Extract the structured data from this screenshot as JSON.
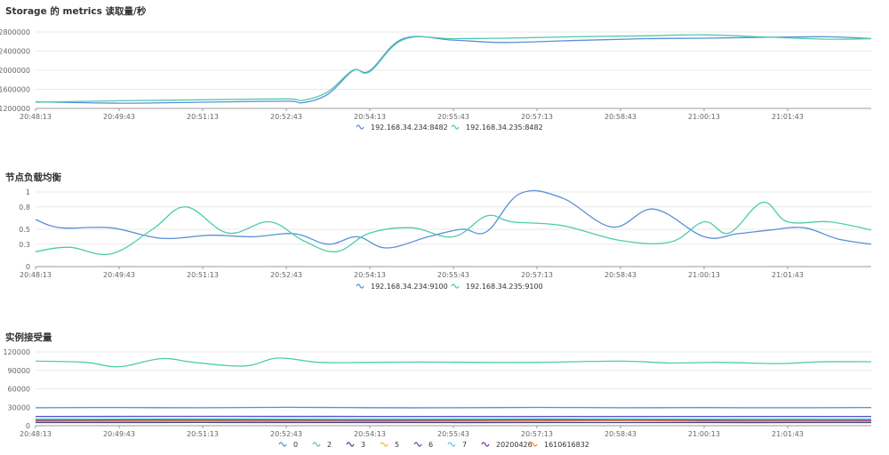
{
  "chart_data": [
    {
      "type": "line",
      "title": "Storage 的 metrics 读取量/秒",
      "xlabel": "",
      "ylabel": "",
      "categories": [
        "20:48:13",
        "20:49:43",
        "20:51:13",
        "20:52:43",
        "20:54:13",
        "20:55:43",
        "20:57:13",
        "20:58:43",
        "21:00:13",
        "21:01:43"
      ],
      "yticks": [
        "2800000",
        "2400000",
        "2000000",
        "1600000",
        "1200000"
      ],
      "ylim": [
        1200000,
        2800000
      ],
      "x_range": [
        0,
        10
      ],
      "grid": true,
      "legend_position": "bottom",
      "series": [
        {
          "name": "192.168.34.234:8482",
          "color": "#5b8fd9",
          "x": [
            0,
            1,
            2,
            3,
            3.2,
            3.5,
            3.8,
            4.0,
            4.4,
            5,
            5.6,
            6.4,
            7.3,
            8,
            8.8,
            9.5,
            10
          ],
          "values": [
            1340000,
            1310000,
            1330000,
            1350000,
            1320000,
            1500000,
            1990000,
            1990000,
            2660000,
            2630000,
            2580000,
            2620000,
            2660000,
            2670000,
            2690000,
            2700000,
            2660000
          ]
        },
        {
          "name": "192.168.34.235:8482",
          "color": "#4ecbac",
          "x": [
            0,
            1,
            2,
            3,
            3.2,
            3.5,
            3.8,
            4.0,
            4.4,
            5,
            5.6,
            6.4,
            7.3,
            8,
            8.8,
            9.5,
            10
          ],
          "values": [
            1330000,
            1360000,
            1380000,
            1400000,
            1370000,
            1550000,
            2000000,
            1970000,
            2640000,
            2660000,
            2670000,
            2700000,
            2720000,
            2740000,
            2690000,
            2650000,
            2660000
          ]
        }
      ]
    },
    {
      "type": "line",
      "title": "节点负载均衡",
      "xlabel": "",
      "ylabel": "",
      "categories": [
        "20:48:13",
        "20:49:43",
        "20:51:13",
        "20:52:43",
        "20:54:13",
        "20:55:43",
        "20:57:13",
        "20:58:43",
        "21:00:13",
        "21:01:43"
      ],
      "yticks": [
        "1",
        "0.8",
        "0.5",
        "0.3",
        "0"
      ],
      "ytick_values": [
        1,
        0.8,
        0.5,
        0.3,
        0
      ],
      "ylim": [
        0,
        1
      ],
      "x_range": [
        0,
        10
      ],
      "grid": true,
      "legend_position": "bottom",
      "series": [
        {
          "name": "192.168.34.234:9100",
          "color": "#5b8fd9",
          "x": [
            0,
            0.3,
            0.9,
            1.5,
            2.1,
            2.6,
            3.1,
            3.5,
            3.85,
            4.2,
            4.7,
            5.1,
            5.4,
            5.8,
            6.3,
            6.9,
            7.4,
            8,
            8.4,
            8.8,
            9.2,
            9.6,
            10
          ],
          "values": [
            0.63,
            0.52,
            0.52,
            0.38,
            0.42,
            0.4,
            0.44,
            0.3,
            0.4,
            0.25,
            0.4,
            0.5,
            0.47,
            0.98,
            0.92,
            0.53,
            0.77,
            0.4,
            0.44,
            0.49,
            0.52,
            0.37,
            0.3
          ]
        },
        {
          "name": "192.168.34.235:9100",
          "color": "#4ecbac",
          "x": [
            0,
            0.4,
            0.9,
            1.4,
            1.8,
            2.3,
            2.8,
            3.2,
            3.6,
            4.0,
            4.5,
            5.0,
            5.4,
            5.7,
            6.3,
            7.0,
            7.6,
            8,
            8.3,
            8.7,
            9.0,
            9.5,
            10
          ],
          "values": [
            0.2,
            0.26,
            0.17,
            0.5,
            0.8,
            0.45,
            0.6,
            0.35,
            0.2,
            0.45,
            0.52,
            0.4,
            0.68,
            0.6,
            0.55,
            0.35,
            0.33,
            0.6,
            0.45,
            0.86,
            0.6,
            0.6,
            0.49
          ]
        }
      ]
    },
    {
      "type": "line",
      "title": "实例接受量",
      "xlabel": "",
      "ylabel": "",
      "categories": [
        "20:48:13",
        "20:49:43",
        "20:51:13",
        "20:52:43",
        "20:54:13",
        "20:55:43",
        "20:57:13",
        "20:58:43",
        "21:00:13",
        "21:01:43"
      ],
      "yticks": [
        "120000",
        "90000",
        "60000",
        "30000",
        "0"
      ],
      "ytick_values": [
        120000,
        90000,
        60000,
        30000,
        0
      ],
      "ylim": [
        0,
        120000
      ],
      "x_range": [
        0,
        10
      ],
      "grid": true,
      "legend_position": "bottom",
      "series": [
        {
          "name": "0",
          "color": "#5b8fd9",
          "x": [
            0,
            1,
            2,
            3,
            4,
            5,
            6,
            7,
            8,
            9,
            10
          ],
          "values": [
            29000,
            29500,
            29000,
            29800,
            29200,
            29000,
            29600,
            29100,
            29400,
            29000,
            29500
          ]
        },
        {
          "name": "2",
          "color": "#4ecbac",
          "x": [
            0,
            0.6,
            1,
            1.5,
            1.9,
            2.5,
            2.9,
            3.4,
            4,
            4.6,
            5.3,
            6,
            7,
            7.6,
            8.2,
            8.9,
            9.4,
            10
          ],
          "values": [
            105000,
            103000,
            96000,
            109000,
            103000,
            97000,
            110000,
            103000,
            103000,
            103500,
            103000,
            103000,
            105000,
            102000,
            103000,
            101000,
            104000,
            104000
          ]
        },
        {
          "name": "3",
          "color": "#3e4a87",
          "x": [
            0,
            2,
            4,
            6,
            8,
            10
          ],
          "values": [
            5000,
            5200,
            5000,
            5100,
            5000,
            5000
          ]
        },
        {
          "name": "5",
          "color": "#f2be32",
          "x": [
            0,
            2,
            4,
            6,
            8,
            10
          ],
          "values": [
            8000,
            8500,
            8000,
            8200,
            8300,
            8000
          ]
        },
        {
          "name": "6",
          "color": "#5550c7",
          "x": [
            0,
            2,
            4,
            6,
            8,
            10
          ],
          "values": [
            15000,
            15200,
            15000,
            15100,
            15000,
            15000
          ]
        },
        {
          "name": "7",
          "color": "#5ad3e0",
          "x": [
            0,
            2,
            4,
            6,
            8,
            10
          ],
          "values": [
            11000,
            11200,
            11000,
            11300,
            11000,
            11000
          ]
        },
        {
          "name": "20200426",
          "color": "#7a3f9e",
          "x": [
            0,
            2,
            4,
            6,
            8,
            10
          ],
          "values": [
            9000,
            9400,
            9000,
            9600,
            9100,
            9000
          ]
        },
        {
          "name": "1610616832",
          "color": "#f58a36",
          "x": [
            0,
            2,
            4,
            6,
            7,
            8,
            10
          ],
          "values": [
            7000,
            7300,
            7000,
            7200,
            8200,
            7000,
            7000
          ]
        }
      ]
    }
  ]
}
